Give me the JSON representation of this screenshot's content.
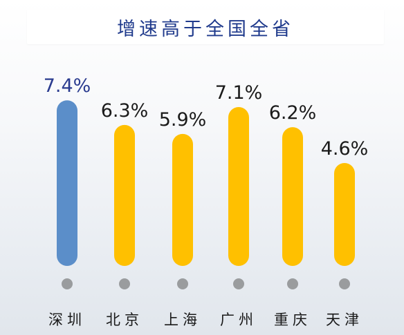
{
  "chart_data": {
    "type": "bar",
    "title": "增速高于全国全省",
    "categories": [
      "深圳",
      "北京",
      "上海",
      "广州",
      "重庆",
      "天津"
    ],
    "values": [
      7.4,
      6.3,
      5.9,
      7.1,
      6.2,
      4.6
    ],
    "value_labels": [
      "7.4%",
      "6.3%",
      "5.9%",
      "7.1%",
      "6.2%",
      "4.6%"
    ],
    "ylim": [
      0,
      8
    ],
    "colors": {
      "highlight_bar": "#5b8ec9",
      "highlight_label": "#2a3b8f",
      "bar": "#ffc000",
      "label": "#1a1a1a",
      "dot": "#9a9c9e",
      "category_text": "#1a1a1a"
    },
    "highlight_index": 0
  }
}
